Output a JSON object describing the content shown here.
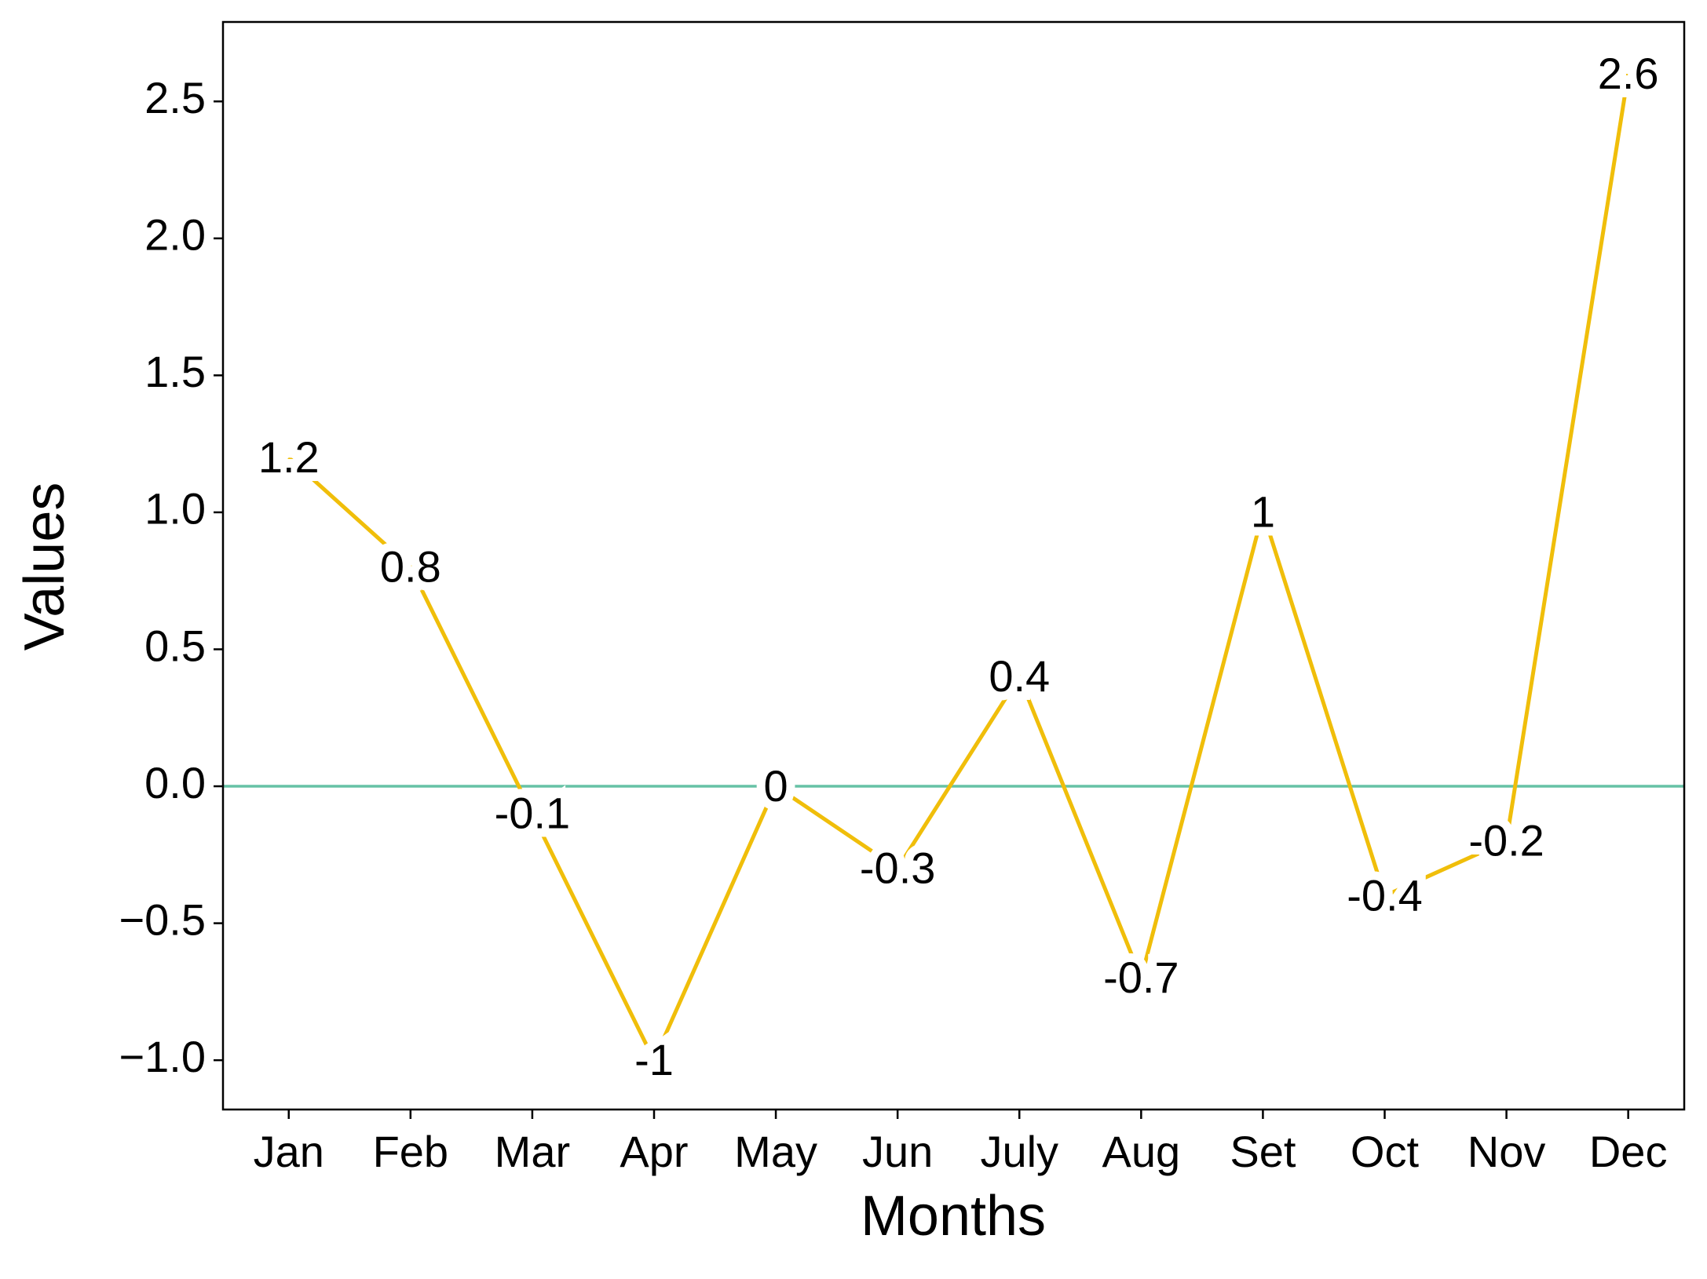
{
  "chart_data": {
    "type": "line",
    "x_label": "Months",
    "y_label": "Values",
    "categories": [
      "Jan",
      "Feb",
      "Mar",
      "Apr",
      "May",
      "Jun",
      "July",
      "Aug",
      "Set",
      "Oct",
      "Nov",
      "Dec"
    ],
    "values": [
      1.2,
      0.8,
      -0.1,
      -1,
      0,
      -0.3,
      0.4,
      -0.7,
      1,
      -0.4,
      -0.2,
      2.6
    ],
    "color": "#f0be0a",
    "reference_line": {
      "y": 0,
      "color": "#66c2a5"
    },
    "ylim": [
      -1.18,
      2.79
    ],
    "yticks": [
      {
        "value": -1,
        "label": "−1.0"
      },
      {
        "value": -0.5,
        "label": "−0.5"
      },
      {
        "value": 0,
        "label": "0.0"
      },
      0.5,
      {
        "value": 1,
        "label": "1.0"
      },
      1.5,
      {
        "value": 2,
        "label": "2.0"
      },
      2.5
    ],
    "grid": false
  }
}
